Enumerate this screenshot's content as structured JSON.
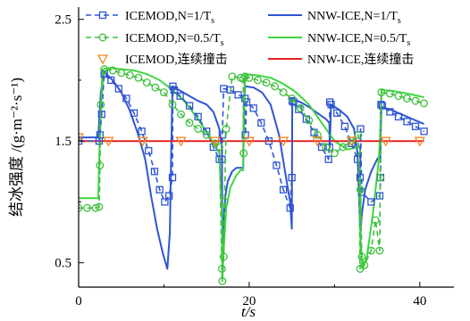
{
  "chart_data": {
    "type": "line",
    "title": "",
    "xlabel": "t/s",
    "ylabel": "结冰强度 /(g·m⁻²·s⁻¹)",
    "xlim": [
      0,
      44
    ],
    "ylim": [
      0.3,
      2.6
    ],
    "xticks": [
      "0",
      "20",
      "40"
    ],
    "yticks": [
      "0.5",
      "1.5",
      "2.5"
    ],
    "legend_placement": "top",
    "grid": false,
    "series": [
      {
        "name": "ICEMOD,N=1/Ts",
        "legend_label": "ICEMOD,N=1/T",
        "legend_sub": "s",
        "style": "dashed",
        "marker": "square",
        "color": "#2f55d4",
        "x": [
          0,
          2.4,
          2.5,
          2.7,
          3,
          3.8,
          4.7,
          5.6,
          6.5,
          7.4,
          8.2,
          8.9,
          9.5,
          10.1,
          10.6,
          11.0,
          11.05,
          11.2,
          11.9,
          13.0,
          14.0,
          15.0,
          15.8,
          16.5,
          16.8,
          16.85,
          17.0,
          17.8,
          18.7,
          19.5,
          19.55,
          19.7,
          20.5,
          21.4,
          22.3,
          23.2,
          24.0,
          24.8,
          25.0,
          25.05,
          25.2,
          25.8,
          26.7,
          27.6,
          28.5,
          29.3,
          29.4,
          29.45,
          29.6,
          30.3,
          31.2,
          32.0,
          32.7,
          33.0,
          33.05,
          33.2,
          34.3,
          35.3,
          35.4,
          35.45,
          35.6,
          36.5,
          37.5,
          38.5,
          39.5,
          40.5
        ],
        "y": [
          1.5,
          1.5,
          1.55,
          1.72,
          2.05,
          2.0,
          1.93,
          1.85,
          1.73,
          1.58,
          1.42,
          1.25,
          1.1,
          1.0,
          1.05,
          1.2,
          1.95,
          1.92,
          1.87,
          1.79,
          1.7,
          1.58,
          1.45,
          1.35,
          1.35,
          1.55,
          1.93,
          1.92,
          1.88,
          1.85,
          1.55,
          1.82,
          1.77,
          1.65,
          1.5,
          1.3,
          1.1,
          0.95,
          1.2,
          1.83,
          1.82,
          1.76,
          1.68,
          1.57,
          1.45,
          1.35,
          1.45,
          1.82,
          1.8,
          1.73,
          1.62,
          1.48,
          1.35,
          1.2,
          1.6,
          1.08,
          1.0,
          1.05,
          1.2,
          1.8,
          1.79,
          1.74,
          1.7,
          1.66,
          1.62,
          1.58
        ]
      },
      {
        "name": "ICEMOD,N=0.5/Ts",
        "legend_label": "ICEMOD,N=0.5/T",
        "legend_sub": "s",
        "style": "dashed",
        "marker": "circle",
        "color": "#3fbf3f",
        "x": [
          0,
          1.0,
          2.0,
          2.4,
          2.5,
          2.6,
          3.0,
          4.0,
          5.0,
          6.0,
          7.0,
          8.0,
          9.0,
          10.0,
          11.0,
          12.0,
          13.0,
          14.0,
          15.0,
          16.0,
          16.5,
          16.8,
          16.85,
          17.0,
          17.1,
          17.3,
          18.0,
          19.0,
          19.3,
          19.35,
          19.5,
          20.0,
          21.0,
          22.0,
          23.0,
          24.0,
          25.0,
          26.0,
          27.0,
          28.0,
          29.0,
          30.0,
          31.0,
          32.0,
          32.8,
          33.0,
          33.05,
          33.2,
          33.5,
          34.3,
          34.8,
          35.3,
          35.35,
          35.5,
          36.5,
          37.5,
          38.5,
          39.5,
          40.5
        ],
        "y": [
          0.95,
          0.95,
          0.95,
          0.96,
          1.3,
          1.8,
          2.09,
          2.08,
          2.06,
          2.04,
          2.02,
          1.98,
          1.94,
          1.9,
          1.8,
          1.72,
          1.65,
          1.6,
          1.55,
          1.48,
          1.45,
          0.45,
          0.35,
          0.55,
          1.0,
          1.6,
          2.03,
          2.02,
          2.01,
          1.4,
          2.03,
          2.02,
          2.0,
          1.98,
          1.95,
          1.9,
          1.85,
          1.77,
          1.67,
          1.55,
          1.45,
          1.4,
          1.45,
          1.5,
          1.55,
          0.45,
          1.1,
          0.55,
          0.48,
          0.6,
          0.85,
          0.6,
          1.2,
          1.9,
          1.89,
          1.87,
          1.85,
          1.83,
          1.81
        ]
      },
      {
        "name": "ICEMOD,连续撞击",
        "legend_label": "ICEMOD,连续撞击",
        "legend_sub": "",
        "style": "none",
        "marker": "triangle-down",
        "color": "#f08a24",
        "x": [
          0,
          3.5,
          7.5,
          12,
          16,
          20,
          24,
          28,
          32,
          36,
          40
        ],
        "y": [
          1.53,
          1.5,
          1.5,
          1.5,
          1.5,
          1.5,
          1.5,
          1.5,
          1.5,
          1.5,
          1.5
        ]
      },
      {
        "name": "NNW-ICE,N=1/Ts",
        "legend_label": "NNW-ICE,N=1/T",
        "legend_sub": "s",
        "style": "solid",
        "marker": "none",
        "color": "#2f55d4",
        "x": [
          0,
          2.3,
          2.6,
          3.0,
          4.0,
          5.0,
          6.0,
          7.0,
          7.8,
          8.5,
          9.2,
          9.9,
          10.4,
          10.7,
          10.8,
          10.85,
          11.0,
          12.0,
          13.0,
          14.0,
          15.0,
          15.8,
          16.5,
          16.8,
          16.85,
          17.0,
          17.2,
          17.5,
          18.0,
          18.5,
          19.0,
          19.3,
          19.35,
          19.5,
          20.5,
          21.5,
          22.5,
          23.5,
          24.2,
          24.8,
          25.0,
          25.05,
          25.2,
          26.0,
          27.0,
          28.0,
          29.0,
          29.4,
          29.45,
          29.6,
          30.5,
          31.5,
          32.3,
          32.7,
          33.0,
          33.05,
          33.2,
          33.6,
          34.3,
          35.0,
          35.3,
          35.35,
          35.5,
          36.5,
          37.5,
          38.5,
          39.5,
          40.5
        ],
        "y": [
          1.53,
          1.53,
          1.9,
          2.07,
          2.0,
          1.9,
          1.75,
          1.55,
          1.35,
          1.05,
          0.78,
          0.57,
          0.45,
          0.75,
          1.2,
          1.4,
          1.95,
          1.91,
          1.87,
          1.83,
          1.8,
          1.74,
          1.6,
          1.45,
          0.55,
          0.85,
          1.05,
          1.17,
          1.25,
          1.28,
          1.28,
          1.28,
          1.7,
          1.95,
          1.94,
          1.9,
          1.8,
          1.55,
          1.25,
          1.0,
          0.78,
          1.85,
          1.84,
          1.82,
          1.78,
          1.73,
          1.68,
          1.65,
          1.45,
          1.8,
          1.76,
          1.7,
          1.6,
          1.4,
          0.8,
          0.75,
          0.9,
          1.1,
          1.25,
          1.35,
          1.38,
          1.35,
          1.78,
          1.76,
          1.73,
          1.7,
          1.67,
          1.64
        ]
      },
      {
        "name": "NNW-ICE,N=0.5/Ts",
        "legend_label": "NNW-ICE,N=0.5/T",
        "legend_sub": "s",
        "style": "solid",
        "marker": "none",
        "color": "#3fd63f",
        "x": [
          0,
          2.3,
          2.5,
          2.8,
          3.5,
          5.0,
          6.5,
          8.0,
          9.5,
          11.0,
          12.5,
          14.0,
          15.5,
          16.5,
          16.8,
          16.85,
          17.0,
          17.3,
          17.8,
          18.5,
          19.0,
          19.3,
          19.35,
          19.5,
          21.0,
          22.5,
          24.0,
          25.5,
          27.0,
          28.5,
          30.0,
          31.5,
          32.8,
          33.0,
          33.05,
          33.3,
          33.8,
          34.5,
          35.2,
          35.35,
          35.5,
          37.0,
          38.5,
          40.5
        ],
        "y": [
          1.03,
          1.03,
          1.6,
          2.09,
          2.1,
          2.09,
          2.08,
          2.05,
          2.0,
          1.92,
          1.82,
          1.68,
          1.52,
          1.4,
          0.85,
          0.35,
          0.6,
          0.95,
          1.12,
          1.22,
          1.26,
          1.26,
          1.72,
          2.05,
          2.04,
          2.02,
          1.97,
          1.9,
          1.8,
          1.65,
          1.5,
          1.43,
          1.45,
          1.45,
          0.7,
          0.45,
          0.55,
          0.9,
          1.35,
          1.55,
          1.92,
          1.91,
          1.89,
          1.86
        ]
      },
      {
        "name": "NNW-ICE,连续撞击",
        "legend_label": "NNW-ICE,连续撞击",
        "legend_sub": "",
        "style": "solid",
        "marker": "none",
        "color": "#e52222",
        "x": [
          0,
          40.5
        ],
        "y": [
          1.5,
          1.5
        ]
      }
    ]
  }
}
